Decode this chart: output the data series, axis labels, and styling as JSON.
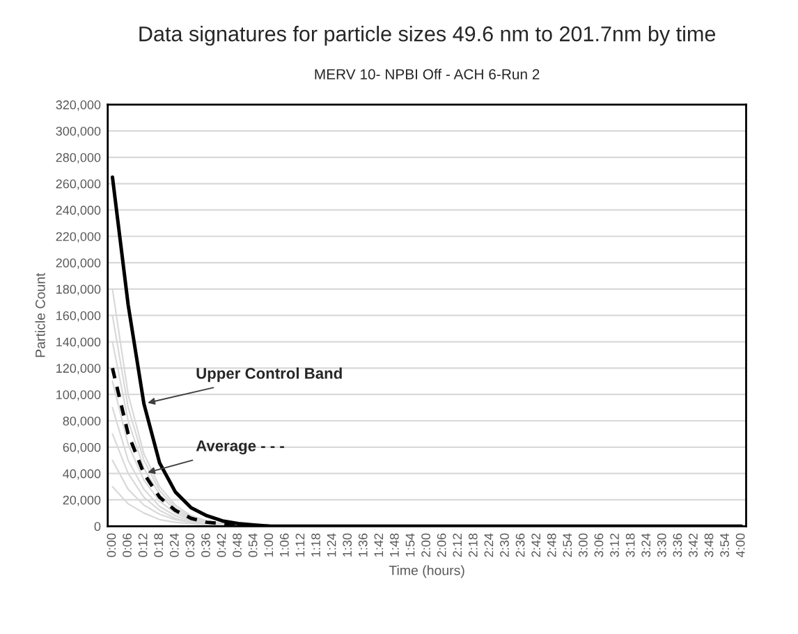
{
  "chart_data": {
    "type": "line",
    "title": "Data signatures for particle sizes 49.6 nm to 201.7nm by time",
    "subtitle": "MERV 10- NPBI Off - ACH 6-Run 2",
    "xlabel": "Time (hours)",
    "ylabel": "Particle Count",
    "categories": [
      "0:00",
      "0:06",
      "0:12",
      "0:18",
      "0:24",
      "0:30",
      "0:36",
      "0:42",
      "0:48",
      "0:54",
      "1:00",
      "1:06",
      "1:12",
      "1:18",
      "1:24",
      "1:30",
      "1:36",
      "1:42",
      "1:48",
      "1:54",
      "2:00",
      "2:06",
      "2:12",
      "2:18",
      "2:24",
      "2:30",
      "2:36",
      "2:42",
      "2:48",
      "2:54",
      "3:00",
      "3:06",
      "3:12",
      "3:18",
      "3:24",
      "3:30",
      "3:36",
      "3:42",
      "3:48",
      "3:54",
      "4:00"
    ],
    "series": [
      {
        "color": "#d9d9d9",
        "values": [
          180000,
          100000,
          55000,
          30000,
          16000,
          8000,
          4000,
          2000,
          1000,
          0,
          0,
          null,
          null,
          null,
          null,
          null,
          null,
          null,
          null,
          null,
          null,
          null,
          null,
          null,
          null,
          null,
          null,
          null,
          null,
          null,
          null,
          null,
          null,
          null,
          null,
          null,
          null,
          null,
          null,
          null,
          null
        ]
      },
      {
        "color": "#d9d9d9",
        "values": [
          160000,
          90000,
          50000,
          27000,
          14000,
          7000,
          4000,
          2000,
          1000,
          0,
          0,
          null,
          null,
          null,
          null,
          null,
          null,
          null,
          null,
          null,
          null,
          null,
          null,
          null,
          null,
          null,
          null,
          null,
          null,
          null,
          null,
          null,
          null,
          null,
          null,
          null,
          null,
          null,
          null,
          null,
          null
        ]
      },
      {
        "color": "#d9d9d9",
        "values": [
          140000,
          80000,
          44000,
          24000,
          12000,
          6000,
          3000,
          2000,
          1000,
          0,
          0,
          null,
          null,
          null,
          null,
          null,
          null,
          null,
          null,
          null,
          null,
          null,
          null,
          null,
          null,
          null,
          null,
          null,
          null,
          null,
          null,
          null,
          null,
          null,
          null,
          null,
          null,
          null,
          null,
          null,
          null
        ]
      },
      {
        "color": "#d9d9d9",
        "values": [
          110000,
          62000,
          35000,
          19000,
          10000,
          5000,
          3000,
          1000,
          0,
          0,
          0,
          null,
          null,
          null,
          null,
          null,
          null,
          null,
          null,
          null,
          null,
          null,
          null,
          null,
          null,
          null,
          null,
          null,
          null,
          null,
          null,
          null,
          null,
          null,
          null,
          null,
          null,
          null,
          null,
          null,
          null
        ]
      },
      {
        "color": "#d9d9d9",
        "values": [
          90000,
          50000,
          28000,
          15000,
          8000,
          4000,
          2000,
          1000,
          0,
          0,
          0,
          null,
          null,
          null,
          null,
          null,
          null,
          null,
          null,
          null,
          null,
          null,
          null,
          null,
          null,
          null,
          null,
          null,
          null,
          null,
          null,
          null,
          null,
          null,
          null,
          null,
          null,
          null,
          null,
          null,
          null
        ]
      },
      {
        "color": "#d9d9d9",
        "values": [
          70000,
          40000,
          22000,
          12000,
          6000,
          3000,
          2000,
          1000,
          0,
          0,
          0,
          null,
          null,
          null,
          null,
          null,
          null,
          null,
          null,
          null,
          null,
          null,
          null,
          null,
          null,
          null,
          null,
          null,
          null,
          null,
          null,
          null,
          null,
          null,
          null,
          null,
          null,
          null,
          null,
          null,
          null
        ]
      },
      {
        "color": "#d9d9d9",
        "values": [
          50000,
          28000,
          16000,
          9000,
          5000,
          3000,
          1000,
          0,
          0,
          0,
          0,
          null,
          null,
          null,
          null,
          null,
          null,
          null,
          null,
          null,
          null,
          null,
          null,
          null,
          null,
          null,
          null,
          null,
          null,
          null,
          null,
          null,
          null,
          null,
          null,
          null,
          null,
          null,
          null,
          null,
          null
        ]
      },
      {
        "color": "#d9d9d9",
        "values": [
          30000,
          17000,
          10000,
          5000,
          3000,
          2000,
          1000,
          0,
          0,
          0,
          0,
          null,
          null,
          null,
          null,
          null,
          null,
          null,
          null,
          null,
          null,
          null,
          null,
          null,
          null,
          null,
          null,
          null,
          null,
          null,
          null,
          null,
          null,
          null,
          null,
          null,
          null,
          null,
          null,
          null,
          null
        ]
      },
      {
        "color": "#000000",
        "line_style": "dashed",
        "values": [
          120000,
          70000,
          40000,
          22000,
          12000,
          6000,
          3000,
          2000,
          1000,
          0,
          0,
          null,
          null,
          null,
          null,
          null,
          null,
          null,
          null,
          null,
          null,
          null,
          null,
          null,
          null,
          null,
          null,
          null,
          null,
          null,
          null,
          null,
          null,
          null,
          null,
          null,
          null,
          null,
          null,
          null,
          null
        ]
      },
      {
        "color": "#000000",
        "line_style": "solid",
        "values": [
          265000,
          168000,
          93000,
          48000,
          26000,
          14000,
          8000,
          4000,
          2000,
          1000,
          0,
          0,
          0,
          0,
          0,
          0,
          0,
          0,
          0,
          0,
          0,
          0,
          0,
          0,
          0,
          0,
          0,
          0,
          0,
          0,
          0,
          0,
          0,
          0,
          0,
          0,
          0,
          0,
          0,
          0,
          0
        ]
      }
    ],
    "annotations": [
      {
        "text": "Upper Control Band",
        "x": "0:12",
        "y": 93000
      },
      {
        "text": "Average - - -",
        "x": "0:12",
        "y": 40000
      }
    ],
    "ylim": [
      0,
      320000
    ],
    "yticks": [
      {
        "value": 0,
        "label": "0"
      },
      {
        "value": 20000,
        "label": "20,000"
      },
      {
        "value": 40000,
        "label": "40,000"
      },
      {
        "value": 60000,
        "label": "60,000"
      },
      {
        "value": 80000,
        "label": "80,000"
      },
      {
        "value": 100000,
        "label": "100,000"
      },
      {
        "value": 120000,
        "label": "120,000"
      },
      {
        "value": 140000,
        "label": "140,000"
      },
      {
        "value": 160000,
        "label": "160,000"
      },
      {
        "value": 180000,
        "label": "180,000"
      },
      {
        "value": 200000,
        "label": "200,000"
      },
      {
        "value": 220000,
        "label": "220,000"
      },
      {
        "value": 240000,
        "label": "240,000"
      },
      {
        "value": 260000,
        "label": "260,000"
      },
      {
        "value": 280000,
        "label": "280,000"
      },
      {
        "value": 300000,
        "label": "300,000"
      },
      {
        "value": 320000,
        "label": "320,000"
      }
    ],
    "grid": "y",
    "legend": false
  }
}
